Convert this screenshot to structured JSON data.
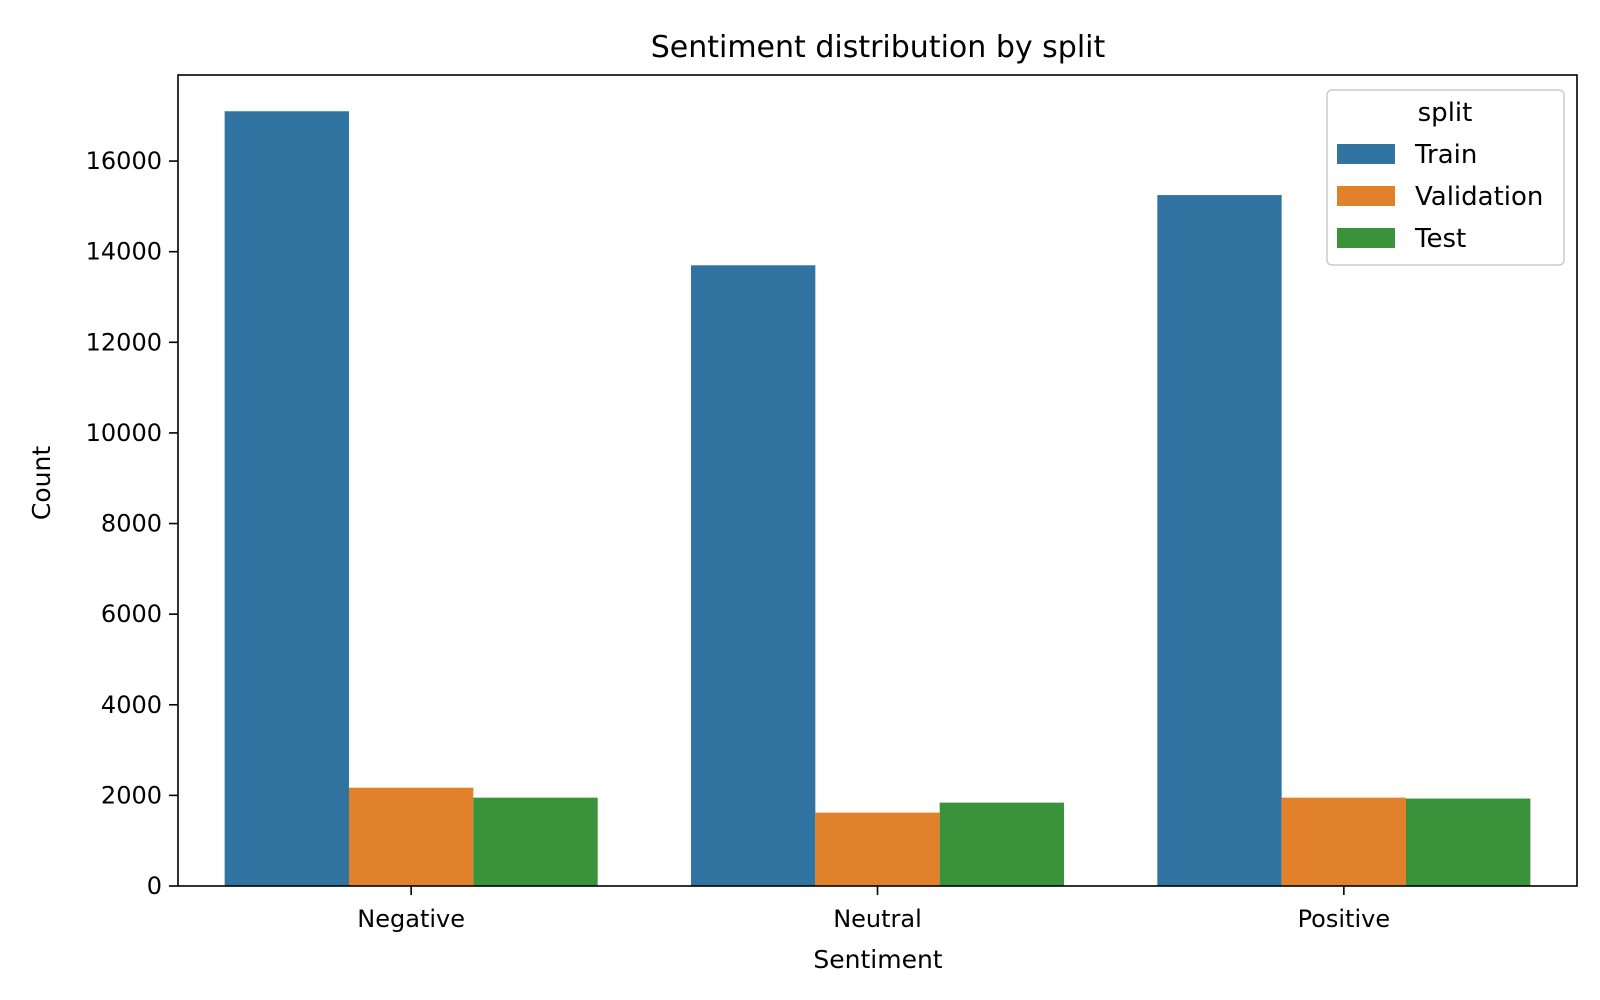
{
  "chart_data": {
    "type": "bar",
    "title": "Sentiment distribution by split",
    "xlabel": "Sentiment",
    "ylabel": "Count",
    "categories": [
      "Negative",
      "Neutral",
      "Positive"
    ],
    "series": [
      {
        "name": "Train",
        "color": "#3274a1",
        "values": [
          17100,
          13700,
          15250
        ]
      },
      {
        "name": "Validation",
        "color": "#e1812c",
        "values": [
          2170,
          1620,
          1950
        ]
      },
      {
        "name": "Test",
        "color": "#3a923a",
        "values": [
          1950,
          1840,
          1930
        ]
      }
    ],
    "ylim": [
      0,
      17900
    ],
    "yticks": [
      0,
      2000,
      4000,
      6000,
      8000,
      10000,
      12000,
      14000,
      16000
    ],
    "legend": {
      "title": "split",
      "position": "top-right"
    },
    "grid": false
  }
}
